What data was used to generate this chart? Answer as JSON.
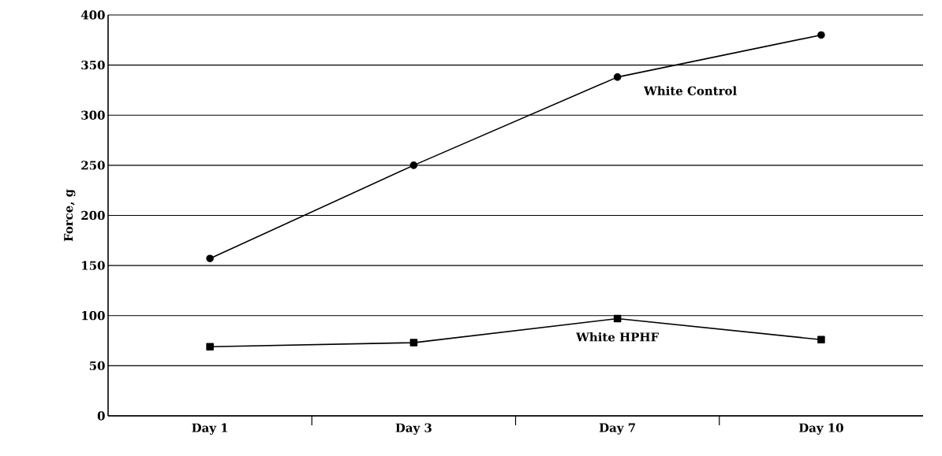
{
  "chart_data": {
    "type": "line",
    "ylabel": "Force, g",
    "categories": [
      "Day 1",
      "Day 3",
      "Day 7",
      "Day 10"
    ],
    "series": [
      {
        "name": "White Control",
        "color": "#000000",
        "values": [
          157,
          250,
          338,
          380
        ],
        "marker": "circle"
      },
      {
        "name": "White HPHF",
        "color": "#000000",
        "values": [
          69,
          73,
          97,
          76
        ],
        "marker": "square"
      }
    ],
    "ylim": [
      0,
      400
    ],
    "yticks": [
      0,
      50,
      100,
      150,
      200,
      250,
      300,
      350,
      400
    ],
    "grid": "y",
    "line_style": "solid"
  }
}
